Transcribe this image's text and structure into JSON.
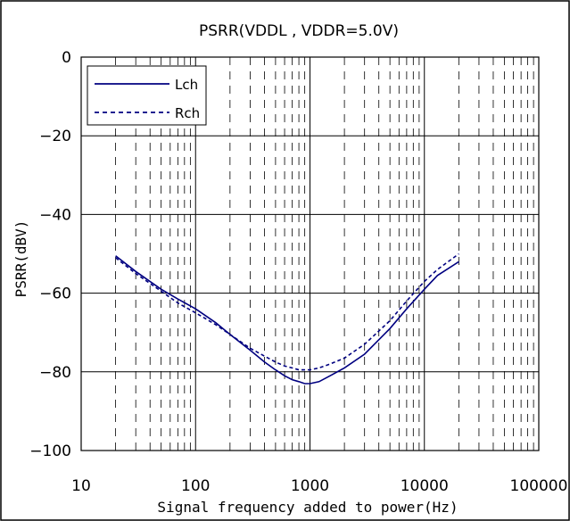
{
  "chart_data": {
    "type": "line",
    "title": "PSRR(VDDL , VDDR=5.0V)",
    "xlabel": "Signal frequency added to power(Hz)",
    "ylabel": "PSRR(dBV)",
    "x_scale": "log",
    "xlim": [
      10,
      100000
    ],
    "ylim": [
      -100,
      0
    ],
    "x_ticks": [
      10,
      100,
      1000,
      10000,
      100000
    ],
    "x_tick_labels": [
      "10",
      "100",
      "1000",
      "10000",
      "100000"
    ],
    "y_ticks": [
      0,
      -20,
      -40,
      -60,
      -80,
      -100
    ],
    "y_tick_labels": [
      "0",
      "−20",
      "−40",
      "−60",
      "−80",
      "−100"
    ],
    "grid": {
      "major_horizontal": true,
      "major_vertical": true,
      "minor_vertical": "dashed"
    },
    "legend": {
      "placement": "top-left",
      "entries": [
        "Lch",
        "Rch"
      ]
    },
    "series": [
      {
        "name": "Lch",
        "style": "solid",
        "color": "#000080",
        "x": [
          20,
          30,
          50,
          70,
          100,
          150,
          200,
          300,
          400,
          500,
          600,
          700,
          800,
          900,
          1000,
          1200,
          1500,
          2000,
          3000,
          5000,
          7000,
          10000,
          13000,
          20000
        ],
        "y": [
          -50.5,
          -54.5,
          -59,
          -61.5,
          -64,
          -67.5,
          -70.5,
          -74.5,
          -77.5,
          -79.5,
          -81,
          -82,
          -82.5,
          -83,
          -83,
          -82.5,
          -81,
          -79,
          -75.5,
          -69,
          -64,
          -59,
          -55.5,
          -52
        ]
      },
      {
        "name": "Rch",
        "style": "dashed",
        "color": "#000080",
        "x": [
          20,
          30,
          50,
          70,
          100,
          150,
          200,
          300,
          400,
          500,
          600,
          700,
          800,
          900,
          1000,
          1200,
          1500,
          2000,
          3000,
          5000,
          7000,
          10000,
          13000,
          20000
        ],
        "y": [
          -51,
          -55,
          -59.5,
          -62.5,
          -65,
          -68,
          -70.5,
          -74,
          -76,
          -77.5,
          -78.5,
          -79,
          -79.5,
          -79.5,
          -79.5,
          -79,
          -78,
          -76.5,
          -73,
          -67,
          -62,
          -57,
          -54,
          -50
        ]
      }
    ]
  }
}
